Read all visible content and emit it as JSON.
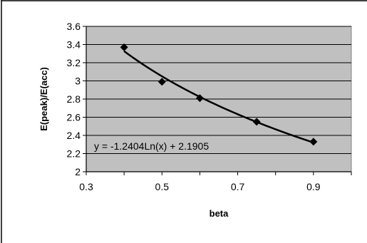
{
  "chart_data": {
    "type": "scatter",
    "title": "",
    "xlabel": "beta",
    "ylabel": "E(peak)/E(acc)",
    "xlim": [
      0.3,
      1.0
    ],
    "ylim": [
      2.0,
      3.6
    ],
    "x_ticks": [
      "0.3",
      "0.5",
      "0.7",
      "0.9"
    ],
    "x_tick_values": [
      0.3,
      0.5,
      0.7,
      0.9
    ],
    "y_ticks": [
      "2",
      "2.2",
      "2.4",
      "2.6",
      "2.8",
      "3",
      "3.2",
      "3.4",
      "3.6"
    ],
    "y_tick_values": [
      2.0,
      2.2,
      2.4,
      2.6,
      2.8,
      3.0,
      3.2,
      3.4,
      3.6
    ],
    "grid": "horizontal",
    "legend": "none",
    "series": [
      {
        "x": [
          0.4,
          0.5,
          0.6,
          0.75,
          0.9
        ],
        "y": [
          3.37,
          2.99,
          2.81,
          2.55,
          2.33
        ],
        "marker": "diamond",
        "color": "#000000"
      }
    ],
    "trendline": {
      "type": "logarithmic",
      "a": -1.2404,
      "b": 2.1905,
      "equation": "y = -1.2404Ln(x) + 2.1905",
      "x_range": [
        0.4,
        0.9
      ],
      "color": "#000000"
    },
    "plot_background": "#c0c0c0",
    "gridline_color": "#000000"
  }
}
